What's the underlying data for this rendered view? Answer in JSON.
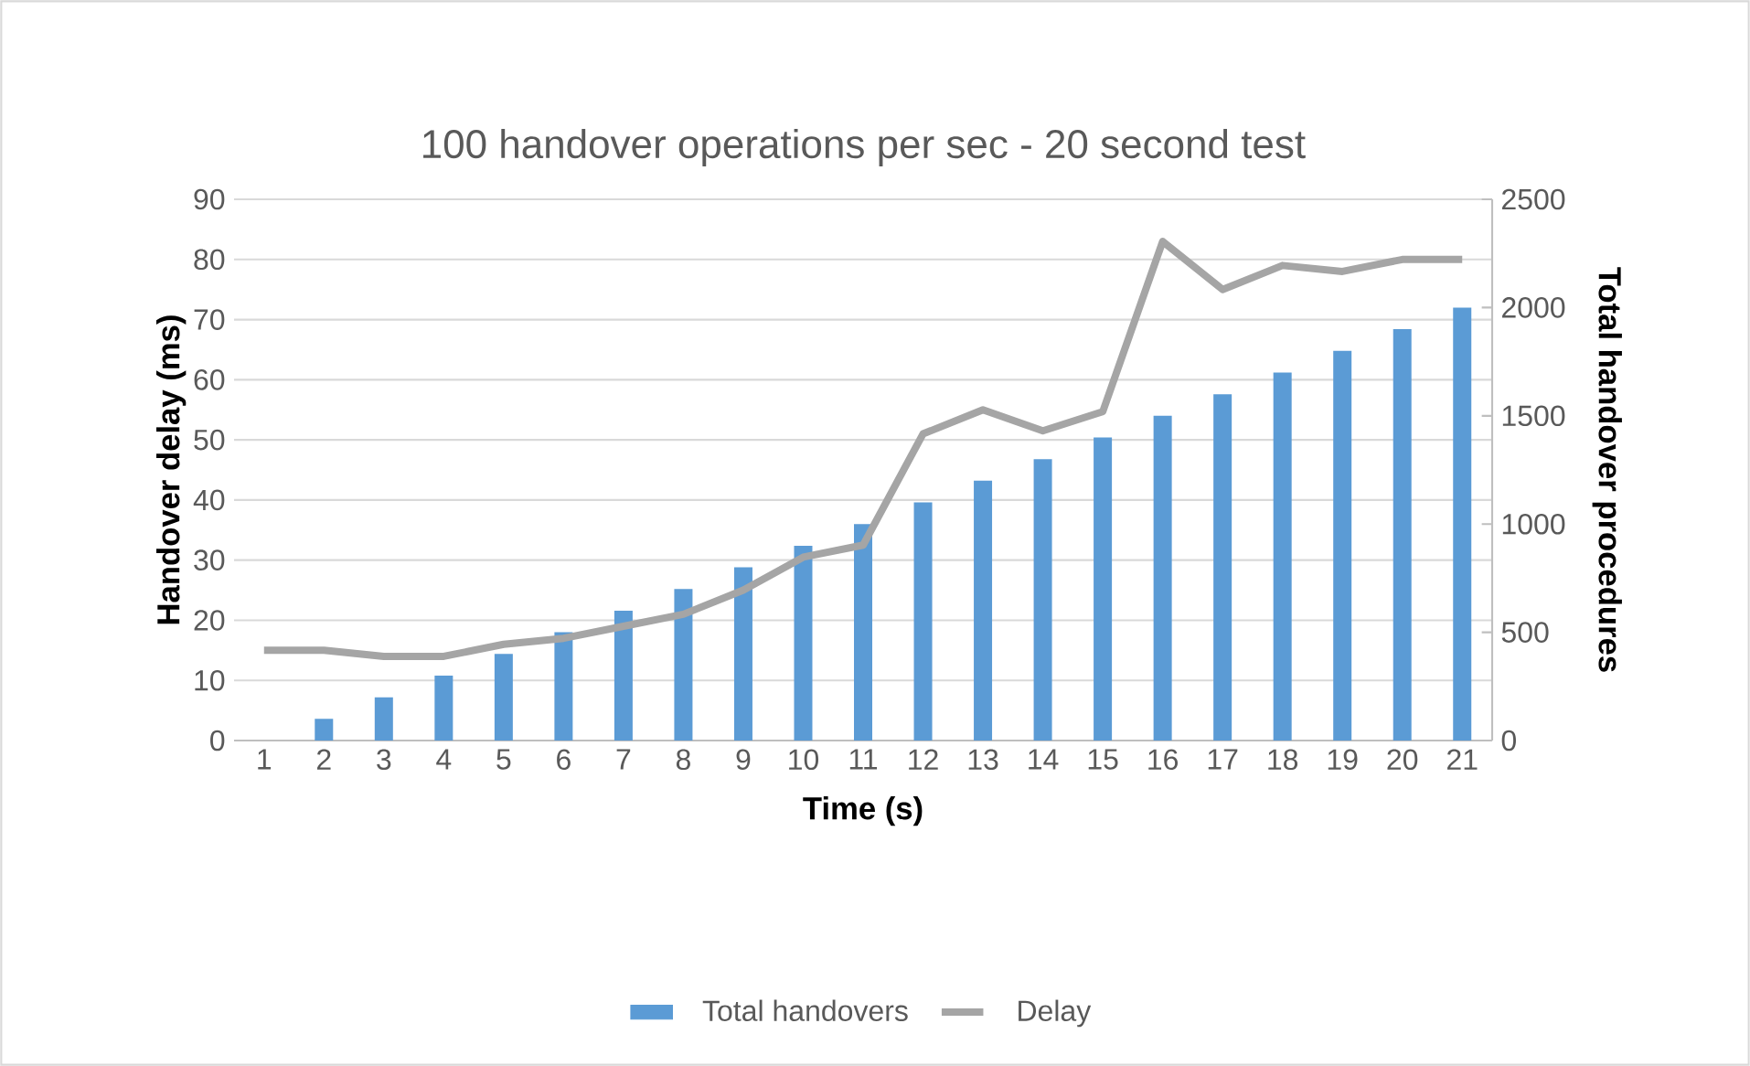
{
  "chart_data": {
    "type": "bar",
    "title": "100 handover operations per sec - 20 second test",
    "xlabel": "Time (s)",
    "ylabel": "Handover delay (ms)",
    "y2label": "Total handover procedures",
    "categories": [
      "1",
      "2",
      "3",
      "4",
      "5",
      "6",
      "7",
      "8",
      "9",
      "10",
      "11",
      "12",
      "13",
      "14",
      "15",
      "16",
      "17",
      "18",
      "19",
      "20",
      "21"
    ],
    "series": [
      {
        "name": "Total handovers",
        "axis": "y2",
        "color": "#5b9bd5",
        "values": [
          0,
          100,
          200,
          300,
          400,
          500,
          600,
          700,
          800,
          900,
          1000,
          1100,
          1200,
          1300,
          1400,
          1500,
          1600,
          1700,
          1800,
          1900,
          2000
        ]
      },
      {
        "name": "Delay",
        "type": "line",
        "axis": "y",
        "color": "#a5a5a5",
        "values": [
          15,
          15,
          14,
          14,
          16,
          17,
          19,
          21,
          25,
          30.5,
          32.5,
          51,
          55,
          51.5,
          54.7,
          83,
          75,
          79,
          78,
          80,
          80
        ]
      }
    ],
    "ylim": [
      0,
      90
    ],
    "yticks": [
      0,
      10,
      20,
      30,
      40,
      50,
      60,
      70,
      80,
      90
    ],
    "y2lim": [
      0,
      2500
    ],
    "y2ticks": [
      0,
      500,
      1000,
      1500,
      2000,
      2500
    ],
    "grid": "y",
    "legend": "bottom"
  }
}
